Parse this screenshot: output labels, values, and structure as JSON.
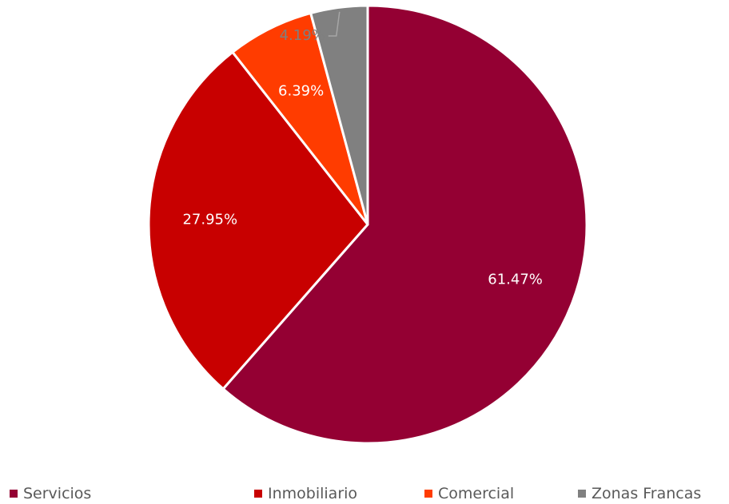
{
  "chart_data": {
    "type": "pie",
    "categories": [
      "Servicios",
      "Inmobiliario",
      "Comercial",
      "Zonas Francas"
    ],
    "values": [
      61.47,
      27.95,
      6.39,
      4.19
    ],
    "data_labels": [
      "61.47%",
      "27.95%",
      "6.39%",
      "4.19%"
    ],
    "colors": [
      "#940033",
      "#C80000",
      "#FF3C00",
      "#808080"
    ],
    "label_colors": [
      "#ffffff",
      "#ffffff",
      "#ffffff",
      "#7f7f7f"
    ],
    "legend_position": "bottom",
    "start_angle_deg": 0,
    "direction": "clockwise"
  }
}
